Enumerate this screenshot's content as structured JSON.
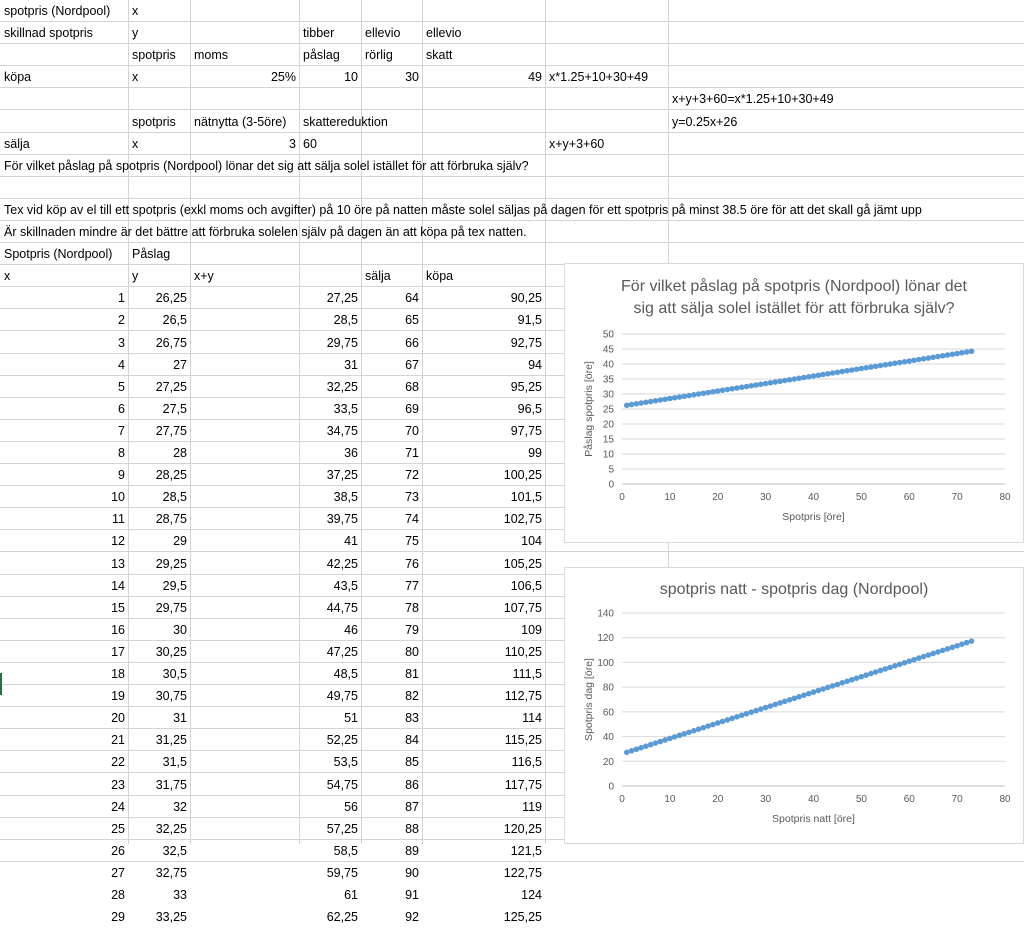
{
  "sheet": {
    "top_rows": [
      [
        "spotpris (Nordpool)",
        "x",
        "",
        "",
        "",
        "",
        "",
        "",
        ""
      ],
      [
        "skillnad spotpris",
        "y",
        "",
        "tibber",
        "ellevio",
        "ellevio",
        "",
        "",
        ""
      ],
      [
        "",
        "spotpris",
        "moms",
        "påslag",
        "rörlig",
        "skatt",
        "",
        "",
        ""
      ],
      [
        "köpa",
        "x",
        "25%",
        "10",
        "30",
        "49",
        "x*1.25+10+30+49",
        "",
        ""
      ],
      [
        "",
        "",
        "",
        "",
        "",
        "",
        "",
        "x+y+3+60=x*1.25+10+30+49",
        ""
      ],
      [
        "",
        "spotpris",
        "nätnytta (3-5öre)",
        "skattereduktion",
        "",
        "",
        "",
        "y=0.25x+26",
        ""
      ],
      [
        "sälja",
        "x",
        "3",
        "60",
        "",
        "",
        "x+y+3+60",
        "",
        ""
      ]
    ],
    "question": "För vilket påslag på spotpris (Nordpool) lönar det sig att sälja solel istället för att förbruka själv?",
    "note1": "Tex vid köp av el till ett spotpris (exkl moms och avgifter) på 10 öre på natten måste solel säljas på dagen för ett spotpris på minst 38.5 öre för att det skall gå jämt upp",
    "note2": "Är skillnaden mindre är det bättre att förbruka solelen själv på dagen än att köpa på tex natten.",
    "table_header1": [
      "Spotpris (Nordpool)",
      "Påslag",
      "",
      "",
      ""
    ],
    "table_header2": [
      "x",
      "y",
      "x+y",
      "sälja",
      "köpa"
    ],
    "table_rows": [
      [
        "1",
        "26,25",
        "27,25",
        "64",
        "90,25"
      ],
      [
        "2",
        "26,5",
        "28,5",
        "65",
        "91,5"
      ],
      [
        "3",
        "26,75",
        "29,75",
        "66",
        "92,75"
      ],
      [
        "4",
        "27",
        "31",
        "67",
        "94"
      ],
      [
        "5",
        "27,25",
        "32,25",
        "68",
        "95,25"
      ],
      [
        "6",
        "27,5",
        "33,5",
        "69",
        "96,5"
      ],
      [
        "7",
        "27,75",
        "34,75",
        "70",
        "97,75"
      ],
      [
        "8",
        "28",
        "36",
        "71",
        "99"
      ],
      [
        "9",
        "28,25",
        "37,25",
        "72",
        "100,25"
      ],
      [
        "10",
        "28,5",
        "38,5",
        "73",
        "101,5"
      ],
      [
        "11",
        "28,75",
        "39,75",
        "74",
        "102,75"
      ],
      [
        "12",
        "29",
        "41",
        "75",
        "104"
      ],
      [
        "13",
        "29,25",
        "42,25",
        "76",
        "105,25"
      ],
      [
        "14",
        "29,5",
        "43,5",
        "77",
        "106,5"
      ],
      [
        "15",
        "29,75",
        "44,75",
        "78",
        "107,75"
      ],
      [
        "16",
        "30",
        "46",
        "79",
        "109"
      ],
      [
        "17",
        "30,25",
        "47,25",
        "80",
        "110,25"
      ],
      [
        "18",
        "30,5",
        "48,5",
        "81",
        "111,5"
      ],
      [
        "19",
        "30,75",
        "49,75",
        "82",
        "112,75"
      ],
      [
        "20",
        "31",
        "51",
        "83",
        "114"
      ],
      [
        "21",
        "31,25",
        "52,25",
        "84",
        "115,25"
      ],
      [
        "22",
        "31,5",
        "53,5",
        "85",
        "116,5"
      ],
      [
        "23",
        "31,75",
        "54,75",
        "86",
        "117,75"
      ],
      [
        "24",
        "32",
        "56",
        "87",
        "119"
      ],
      [
        "25",
        "32,25",
        "57,25",
        "88",
        "120,25"
      ],
      [
        "26",
        "32,5",
        "58,5",
        "89",
        "121,5"
      ],
      [
        "27",
        "32,75",
        "59,75",
        "90",
        "122,75"
      ],
      [
        "28",
        "33",
        "61",
        "91",
        "124"
      ],
      [
        "29",
        "33,25",
        "62,25",
        "92",
        "125,25"
      ]
    ]
  },
  "chart_data": [
    {
      "type": "scatter",
      "title_lines": [
        "För vilket påslag på spotpris (Nordpool) lönar det",
        "sig att sälja solel istället för att förbruka själv?"
      ],
      "xlabel": "Spotpris [öre]",
      "ylabel": "Påslag spotpris [öre]",
      "xlim": [
        0,
        80
      ],
      "ylim": [
        0,
        50
      ],
      "xticks": [
        0,
        10,
        20,
        30,
        40,
        50,
        60,
        70,
        80
      ],
      "yticks": [
        0,
        5,
        10,
        15,
        20,
        25,
        30,
        35,
        40,
        45,
        50
      ],
      "grid": true,
      "color": "#5b9bd5",
      "series": [
        {
          "x_start": 1,
          "x_end": 73,
          "x_step": 1,
          "y_formula": "y = 0.25x + 26",
          "y_first": 26.25,
          "y_last": 44.25
        }
      ]
    },
    {
      "type": "scatter",
      "title_lines": [
        "spotpris natt - spotpris dag (Nordpool)"
      ],
      "xlabel": "Spotpris natt [öre]",
      "ylabel": "Spotpris dag [öre]",
      "xlim": [
        0,
        80
      ],
      "ylim": [
        0,
        140
      ],
      "xticks": [
        0,
        10,
        20,
        30,
        40,
        50,
        60,
        70,
        80
      ],
      "yticks": [
        0,
        20,
        40,
        60,
        80,
        100,
        120,
        140
      ],
      "grid": true,
      "color": "#5b9bd5",
      "series": [
        {
          "x_start": 1,
          "x_end": 73,
          "x_step": 1,
          "y_formula": "y = 1.25x + 26",
          "y_first": 27.25,
          "y_last": 117.25
        }
      ]
    }
  ]
}
